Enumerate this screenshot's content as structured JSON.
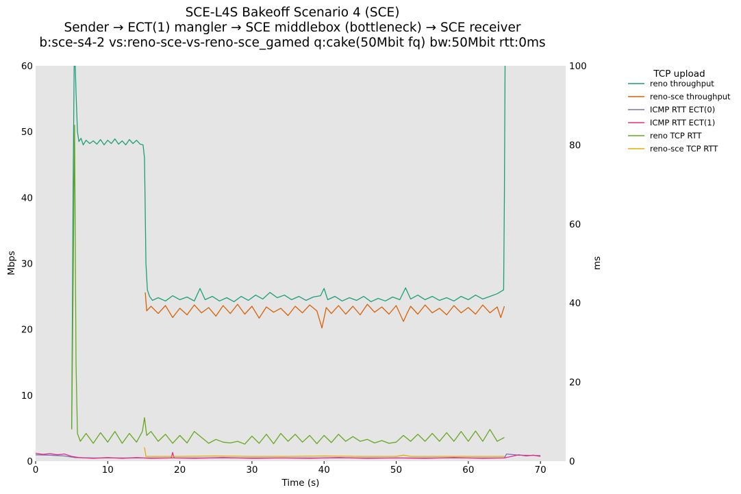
{
  "chart_data": {
    "type": "line",
    "title": [
      "SCE-L4S Bakeoff Scenario 4 (SCE)",
      "Sender → ECT(1) mangler → SCE middlebox (bottleneck) → SCE receiver",
      "b:sce-s4-2 vs:reno-sce-vs-reno-sce_gamed q:cake(50Mbit fq) bw:50Mbit rtt:0ms"
    ],
    "xlabel": "Time (s)",
    "ylabel_left": "Mbps",
    "ylabel_right": "ms",
    "xlim": [
      0,
      73.5
    ],
    "ylim_left": [
      0,
      60
    ],
    "ylim_right": [
      0,
      100
    ],
    "x_ticks": [
      0,
      10,
      20,
      30,
      40,
      50,
      60,
      70
    ],
    "y_ticks_left": [
      0,
      10,
      20,
      30,
      40,
      50,
      60
    ],
    "y_ticks_right": [
      0,
      20,
      40,
      60,
      80,
      100
    ],
    "background": "#e5e5e5",
    "grid": false,
    "legend": {
      "title": "TCP upload",
      "placement": "outside-right"
    },
    "series": [
      {
        "name": "reno throughput",
        "axis": "left",
        "color": "#1b9e77",
        "points": [
          [
            5.0,
            5
          ],
          [
            5.2,
            42
          ],
          [
            5.35,
            60
          ],
          [
            5.5,
            60
          ],
          [
            5.6,
            56
          ],
          [
            5.8,
            50
          ],
          [
            6.0,
            48.5
          ],
          [
            6.3,
            49
          ],
          [
            6.6,
            48
          ],
          [
            7.0,
            48.7
          ],
          [
            7.5,
            48.2
          ],
          [
            8,
            48.6
          ],
          [
            8.5,
            48.1
          ],
          [
            9,
            48.8
          ],
          [
            9.5,
            48
          ],
          [
            10,
            48.7
          ],
          [
            10.5,
            48.2
          ],
          [
            11,
            48.9
          ],
          [
            11.5,
            48.1
          ],
          [
            12,
            48.6
          ],
          [
            12.5,
            48
          ],
          [
            13,
            48.8
          ],
          [
            13.5,
            48.2
          ],
          [
            14,
            48.7
          ],
          [
            14.5,
            48.1
          ],
          [
            14.9,
            48
          ],
          [
            15.1,
            46
          ],
          [
            15.3,
            30
          ],
          [
            15.5,
            26
          ],
          [
            15.8,
            25
          ],
          [
            16.2,
            24.4
          ],
          [
            17,
            24.8
          ],
          [
            18,
            24.3
          ],
          [
            19,
            25.1
          ],
          [
            20,
            24.5
          ],
          [
            21,
            24.9
          ],
          [
            22,
            24.3
          ],
          [
            22.8,
            26.2
          ],
          [
            23.5,
            24.5
          ],
          [
            24.5,
            25
          ],
          [
            25.5,
            24.3
          ],
          [
            26.5,
            24.8
          ],
          [
            27.5,
            24.2
          ],
          [
            28.5,
            25
          ],
          [
            29.5,
            24.4
          ],
          [
            30.5,
            25.2
          ],
          [
            31.5,
            24.6
          ],
          [
            32.5,
            25.6
          ],
          [
            33.5,
            24.8
          ],
          [
            34.5,
            25.2
          ],
          [
            35.5,
            24.5
          ],
          [
            36.5,
            25
          ],
          [
            37.5,
            24.4
          ],
          [
            38.5,
            24.9
          ],
          [
            39.5,
            25.1
          ],
          [
            40,
            26.2
          ],
          [
            40.5,
            24.5
          ],
          [
            41.5,
            25
          ],
          [
            42.5,
            24.3
          ],
          [
            43.5,
            24.8
          ],
          [
            44.5,
            24.4
          ],
          [
            45.5,
            25
          ],
          [
            46.5,
            24.2
          ],
          [
            47.5,
            24.7
          ],
          [
            48.5,
            24.3
          ],
          [
            49.5,
            24.9
          ],
          [
            50.5,
            24.5
          ],
          [
            51.3,
            26.3
          ],
          [
            52,
            24.6
          ],
          [
            53,
            25.2
          ],
          [
            54,
            24.5
          ],
          [
            55,
            25
          ],
          [
            56,
            24.4
          ],
          [
            57,
            24.8
          ],
          [
            58,
            24.3
          ],
          [
            59,
            25
          ],
          [
            60,
            24.5
          ],
          [
            61,
            25.2
          ],
          [
            62,
            24.6
          ],
          [
            63,
            25
          ],
          [
            64,
            25.4
          ],
          [
            64.6,
            25.8
          ],
          [
            64.9,
            26
          ],
          [
            65.0,
            40
          ],
          [
            65.1,
            60
          ]
        ]
      },
      {
        "name": "reno-sce throughput",
        "axis": "left",
        "color": "#d95f02",
        "points": [
          [
            15.2,
            25.6
          ],
          [
            15.4,
            22.8
          ],
          [
            16,
            23.5
          ],
          [
            17,
            22.4
          ],
          [
            18,
            23.6
          ],
          [
            19,
            21.8
          ],
          [
            20,
            23.2
          ],
          [
            21,
            22.2
          ],
          [
            22,
            23.7
          ],
          [
            23,
            22.5
          ],
          [
            24,
            23.3
          ],
          [
            25,
            22
          ],
          [
            26,
            23.6
          ],
          [
            27,
            22.4
          ],
          [
            28,
            23.8
          ],
          [
            29,
            22.3
          ],
          [
            30,
            23.5
          ],
          [
            31,
            21.7
          ],
          [
            32,
            23.4
          ],
          [
            33,
            22.6
          ],
          [
            34,
            23.2
          ],
          [
            35,
            22.1
          ],
          [
            36,
            23.5
          ],
          [
            37,
            22.5
          ],
          [
            38,
            23.7
          ],
          [
            39,
            22.8
          ],
          [
            39.7,
            20.2
          ],
          [
            40.3,
            23.3
          ],
          [
            41,
            22.4
          ],
          [
            42,
            23.6
          ],
          [
            43,
            22.3
          ],
          [
            44,
            23.5
          ],
          [
            45,
            22.2
          ],
          [
            46,
            23.8
          ],
          [
            47,
            22.6
          ],
          [
            48,
            23.4
          ],
          [
            49,
            22.3
          ],
          [
            50,
            23.6
          ],
          [
            51,
            21.2
          ],
          [
            51.5,
            22.4
          ],
          [
            52,
            23.5
          ],
          [
            53,
            22.3
          ],
          [
            54,
            23.7
          ],
          [
            55,
            22.5
          ],
          [
            56,
            23.2
          ],
          [
            57,
            22.2
          ],
          [
            58,
            23.6
          ],
          [
            59,
            22.5
          ],
          [
            60,
            23.3
          ],
          [
            61,
            22.3
          ],
          [
            62,
            23.7
          ],
          [
            63,
            22.5
          ],
          [
            64,
            23.4
          ],
          [
            64.5,
            21.8
          ],
          [
            65.0,
            23.5
          ]
        ]
      },
      {
        "name": "ICMP RTT ECT(0)",
        "axis": "right",
        "color": "#7570b3",
        "points": [
          [
            0,
            1.6
          ],
          [
            2,
            1.5
          ],
          [
            4,
            1.3
          ],
          [
            5.5,
            0.9
          ],
          [
            8,
            0.8
          ],
          [
            15,
            0.8
          ],
          [
            25,
            0.8
          ],
          [
            35,
            0.8
          ],
          [
            45,
            0.8
          ],
          [
            55,
            0.8
          ],
          [
            65,
            0.8
          ],
          [
            65.3,
            1.8
          ],
          [
            67,
            1.5
          ],
          [
            70,
            1.4
          ]
        ]
      },
      {
        "name": "ICMP RTT ECT(1)",
        "axis": "right",
        "color": "#e7298a",
        "points": [
          [
            0,
            2.0
          ],
          [
            1,
            1.7
          ],
          [
            2,
            1.9
          ],
          [
            3,
            1.6
          ],
          [
            4,
            1.8
          ],
          [
            5,
            1.2
          ],
          [
            6,
            0.9
          ],
          [
            8,
            0.7
          ],
          [
            10,
            0.9
          ],
          [
            12,
            0.7
          ],
          [
            14,
            0.9
          ],
          [
            16,
            0.7
          ],
          [
            18.8,
            0.8
          ],
          [
            19,
            2.2
          ],
          [
            19.2,
            0.8
          ],
          [
            22,
            0.7
          ],
          [
            26,
            0.9
          ],
          [
            30,
            0.7
          ],
          [
            34,
            0.8
          ],
          [
            38,
            0.7
          ],
          [
            42,
            0.9
          ],
          [
            46,
            0.7
          ],
          [
            50,
            0.8
          ],
          [
            54,
            0.7
          ],
          [
            58,
            0.9
          ],
          [
            62,
            0.7
          ],
          [
            65,
            0.8
          ],
          [
            66,
            1.2
          ],
          [
            67,
            1.6
          ],
          [
            68,
            1.3
          ],
          [
            69,
            1.5
          ],
          [
            70,
            1.2
          ]
        ]
      },
      {
        "name": "reno TCP RTT",
        "axis": "right",
        "color": "#66a61e",
        "points": [
          [
            5.0,
            8
          ],
          [
            5.2,
            45
          ],
          [
            5.4,
            85
          ],
          [
            5.6,
            25
          ],
          [
            5.8,
            7
          ],
          [
            6.2,
            5
          ],
          [
            7,
            7
          ],
          [
            8,
            4.5
          ],
          [
            9,
            7.2
          ],
          [
            10,
            4.8
          ],
          [
            11,
            7.5
          ],
          [
            12,
            4.5
          ],
          [
            13,
            7
          ],
          [
            14,
            4.8
          ],
          [
            14.8,
            7.5
          ],
          [
            15.1,
            11
          ],
          [
            15.4,
            6.5
          ],
          [
            16,
            7.5
          ],
          [
            17,
            5
          ],
          [
            18,
            6.8
          ],
          [
            19,
            4.5
          ],
          [
            20,
            6.5
          ],
          [
            21,
            4.6
          ],
          [
            22,
            7.5
          ],
          [
            23,
            6
          ],
          [
            24,
            4.5
          ],
          [
            25,
            5.5
          ],
          [
            26,
            4.8
          ],
          [
            27,
            4.6
          ],
          [
            28,
            5
          ],
          [
            29,
            4.3
          ],
          [
            30,
            6.3
          ],
          [
            31,
            4.5
          ],
          [
            32,
            6.8
          ],
          [
            33,
            4.4
          ],
          [
            34,
            7
          ],
          [
            35,
            5
          ],
          [
            36,
            6.8
          ],
          [
            37,
            4.8
          ],
          [
            38,
            6.5
          ],
          [
            39,
            4.4
          ],
          [
            40,
            6.5
          ],
          [
            41,
            4.7
          ],
          [
            42,
            6.8
          ],
          [
            43,
            5
          ],
          [
            44,
            6.2
          ],
          [
            45,
            5
          ],
          [
            46,
            5.5
          ],
          [
            47,
            4.6
          ],
          [
            48,
            5.2
          ],
          [
            49,
            4.5
          ],
          [
            50,
            4.8
          ],
          [
            51,
            6.5
          ],
          [
            52,
            5
          ],
          [
            53,
            6.8
          ],
          [
            54,
            5
          ],
          [
            55,
            7
          ],
          [
            56,
            5
          ],
          [
            57,
            7.2
          ],
          [
            58,
            5
          ],
          [
            59,
            7.5
          ],
          [
            60,
            5
          ],
          [
            61,
            7.6
          ],
          [
            62,
            5
          ],
          [
            63,
            8
          ],
          [
            64,
            5
          ],
          [
            65,
            6
          ]
        ]
      },
      {
        "name": "reno-sce TCP RTT",
        "axis": "right",
        "color": "#e6ab02",
        "points": [
          [
            15.1,
            3.5
          ],
          [
            15.3,
            1.2
          ],
          [
            20,
            1.2
          ],
          [
            25,
            1.3
          ],
          [
            30,
            1.2
          ],
          [
            35,
            1.2
          ],
          [
            40,
            1.3
          ],
          [
            45,
            1.2
          ],
          [
            50,
            1.2
          ],
          [
            51,
            1.5
          ],
          [
            52,
            1.2
          ],
          [
            55,
            1.2
          ],
          [
            60,
            1.2
          ],
          [
            65,
            1.2
          ]
        ]
      }
    ]
  }
}
